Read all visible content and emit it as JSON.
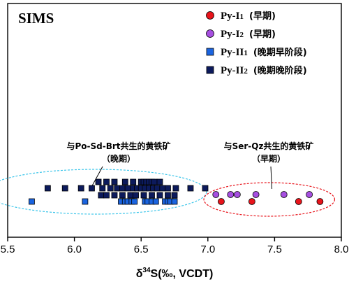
{
  "chart_data": {
    "type": "scatter",
    "title": "SIMS",
    "xlabel": "δ34S(‰, VCDT)",
    "xlabel_parts": {
      "delta": "δ",
      "superscript": "34",
      "rest": "S(‰, VCDT)"
    },
    "ylabel": "",
    "xlim": [
      5.5,
      8.0
    ],
    "x_ticks": [
      "5.5",
      "6.0",
      "6.5",
      "7.0",
      "7.5",
      "8.0"
    ],
    "y_ticks": [],
    "grid": false,
    "legend_position": "top-right",
    "series": [
      {
        "name": "Py-I1 (早期)",
        "legend_parts": {
          "main": "Py-I",
          "sub": "1",
          "suffix": "(早期)"
        },
        "marker": "circle",
        "color": "#e8141b",
        "points": [
          [
            7.1,
            1.5
          ],
          [
            7.33,
            1.5
          ],
          [
            7.68,
            1.5
          ],
          [
            7.84,
            1.5
          ]
        ]
      },
      {
        "name": "Py-I2 (早期)",
        "legend_parts": {
          "main": "Py-I",
          "sub": "2",
          "suffix": "(早期)"
        },
        "marker": "circle",
        "color": "#a64fe0",
        "points": [
          [
            7.06,
            2.5
          ],
          [
            7.17,
            2.5
          ],
          [
            7.22,
            2.5
          ],
          [
            7.36,
            2.5
          ],
          [
            7.57,
            2.5
          ],
          [
            7.76,
            2.5
          ]
        ]
      },
      {
        "name": "Py-II1 (晚期早阶段)",
        "legend_parts": {
          "main": "Py-II",
          "sub": "1",
          "suffix": "(晚期早阶段)"
        },
        "marker": "square",
        "color": "#1a64e0",
        "points": [
          [
            5.68,
            1.5
          ],
          [
            6.08,
            1.5
          ],
          [
            6.35,
            1.5
          ],
          [
            6.38,
            1.5
          ],
          [
            6.4,
            1.5
          ],
          [
            6.43,
            1.5
          ],
          [
            6.45,
            1.5
          ],
          [
            6.53,
            1.5
          ],
          [
            6.55,
            1.5
          ],
          [
            6.58,
            1.5
          ],
          [
            6.61,
            1.5
          ],
          [
            6.68,
            1.5
          ],
          [
            6.7,
            1.5
          ],
          [
            6.72,
            1.5
          ],
          [
            6.75,
            1.5
          ]
        ]
      },
      {
        "name": "Py-II2 (晚期晚阶段)",
        "legend_parts": {
          "main": "Py-II",
          "sub": "2",
          "suffix": "(晚期晚阶段)"
        },
        "marker": "square",
        "color": "#0c1a5c",
        "points": [
          [
            6.18,
            3.5
          ],
          [
            6.24,
            3.5
          ],
          [
            6.3,
            3.5
          ],
          [
            6.38,
            3.5
          ],
          [
            6.44,
            3.5
          ],
          [
            6.5,
            3.5
          ],
          [
            6.52,
            3.5
          ],
          [
            6.54,
            3.5
          ],
          [
            6.56,
            3.5
          ],
          [
            6.58,
            3.5
          ],
          [
            6.6,
            3.5
          ],
          [
            6.64,
            3.5
          ],
          [
            5.8,
            2.8
          ],
          [
            5.93,
            2.8
          ],
          [
            6.05,
            2.8
          ],
          [
            6.13,
            2.8
          ],
          [
            6.21,
            2.8
          ],
          [
            6.27,
            2.8
          ],
          [
            6.32,
            2.8
          ],
          [
            6.36,
            2.8
          ],
          [
            6.4,
            2.8
          ],
          [
            6.44,
            2.8
          ],
          [
            6.47,
            2.8
          ],
          [
            6.5,
            2.8
          ],
          [
            6.53,
            2.8
          ],
          [
            6.56,
            2.8
          ],
          [
            6.59,
            2.8
          ],
          [
            6.62,
            2.8
          ],
          [
            6.66,
            2.8
          ],
          [
            6.7,
            2.8
          ],
          [
            6.76,
            2.8
          ],
          [
            6.87,
            2.8
          ],
          [
            6.98,
            2.8
          ],
          [
            6.2,
            2.2
          ],
          [
            6.24,
            2.2
          ],
          [
            6.3,
            2.2
          ],
          [
            6.36,
            2.2
          ],
          [
            6.42,
            2.2
          ],
          [
            6.46,
            2.2
          ],
          [
            6.52,
            2.2
          ],
          [
            6.58,
            2.2
          ],
          [
            6.64,
            2.2
          ],
          [
            6.7,
            2.2
          ],
          [
            6.75,
            2.2
          ]
        ]
      }
    ],
    "annotations": [
      {
        "lines": [
          "与Po-Sd-Brt共生的黄铁矿",
          "（晚期）"
        ],
        "leader_to_x": 6.12,
        "enclosure_color": "#3ec6ea"
      },
      {
        "lines": [
          "与Ser-Qz共生的黄铁矿",
          "（早期）"
        ],
        "leader_to_x": 7.48,
        "enclosure_color": "#e8141b"
      }
    ]
  }
}
